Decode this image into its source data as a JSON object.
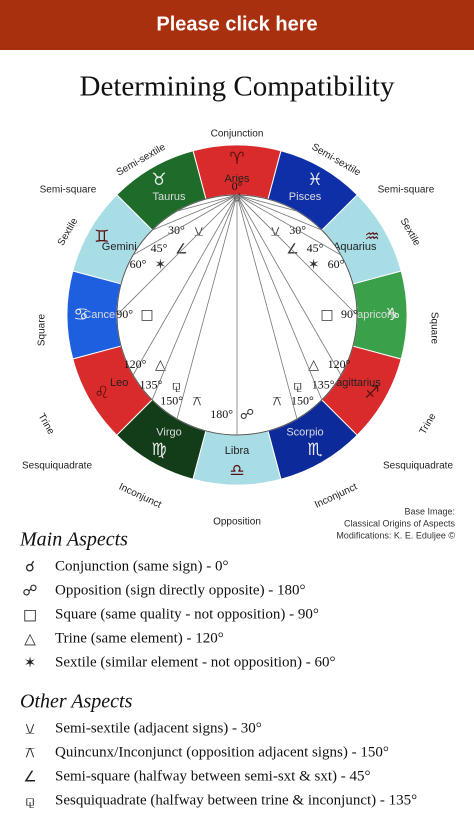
{
  "banner": "Please click here",
  "title": "Determining Compatibility",
  "wheel": {
    "signs": [
      {
        "name": "Aries",
        "glyph": "♈"
      },
      {
        "name": "Taurus",
        "glyph": "♉"
      },
      {
        "name": "Gemini",
        "glyph": "♊"
      },
      {
        "name": "Cancer",
        "glyph": "♋"
      },
      {
        "name": "Leo",
        "glyph": "♌"
      },
      {
        "name": "Virgo",
        "glyph": "♍"
      },
      {
        "name": "Libra",
        "glyph": "♎"
      },
      {
        "name": "Scorpio",
        "glyph": "♏"
      },
      {
        "name": "Sagittarius",
        "glyph": "♐"
      },
      {
        "name": "Capricorn",
        "glyph": "♑"
      },
      {
        "name": "Aquarius",
        "glyph": "♒"
      },
      {
        "name": "Pisces",
        "glyph": "♓"
      }
    ],
    "outer_labels": [
      "Conjunction",
      "Semi-sextile",
      "Semi-sextile",
      "Semi-square",
      "Semi-square",
      "Sextile",
      "Sextile",
      "Square",
      "Square",
      "Trine",
      "Trine",
      "Sesquiquadrate",
      "Sesquiquadrate",
      "Inconjunct",
      "Inconjunct",
      "Opposition"
    ],
    "degree_labels": [
      "0°",
      "30°",
      "30°",
      "45°",
      "45°",
      "60°",
      "60°",
      "90°",
      "90°",
      "120°",
      "120°",
      "135°",
      "135°",
      "150°",
      "150°",
      "180°"
    ]
  },
  "credit": [
    "Base Image:",
    "Classical Origins of Aspects",
    "Modifications: K. E. Eduljee ©"
  ],
  "main_aspects": {
    "heading": "Main Aspects",
    "items": [
      {
        "symbol": "☌",
        "text": "Conjunction (same sign) - 0°"
      },
      {
        "symbol": "☍",
        "text": "Opposition (sign directly opposite) - 180°"
      },
      {
        "symbol": "□",
        "text": "Square (same quality - not opposition) - 90°"
      },
      {
        "symbol": "△",
        "text": "Trine (same element) - 120°"
      },
      {
        "symbol": "✶",
        "text": "Sextile (similar element - not opposition) - 60°"
      }
    ]
  },
  "other_aspects": {
    "heading": "Other Aspects",
    "items": [
      {
        "symbol": "⚺",
        "text": "Semi-sextile (adjacent signs) - 30°"
      },
      {
        "symbol": "⚻",
        "text": "Quincunx/Inconjunct (opposition adjacent signs) - 150°"
      },
      {
        "symbol": "∠",
        "text": "Semi-square (halfway between semi-sxt & sxt) - 45°"
      },
      {
        "symbol": "⚼",
        "text": "Sesquiquadrate (halfway between trine & inconjunct) - 135°"
      }
    ]
  }
}
